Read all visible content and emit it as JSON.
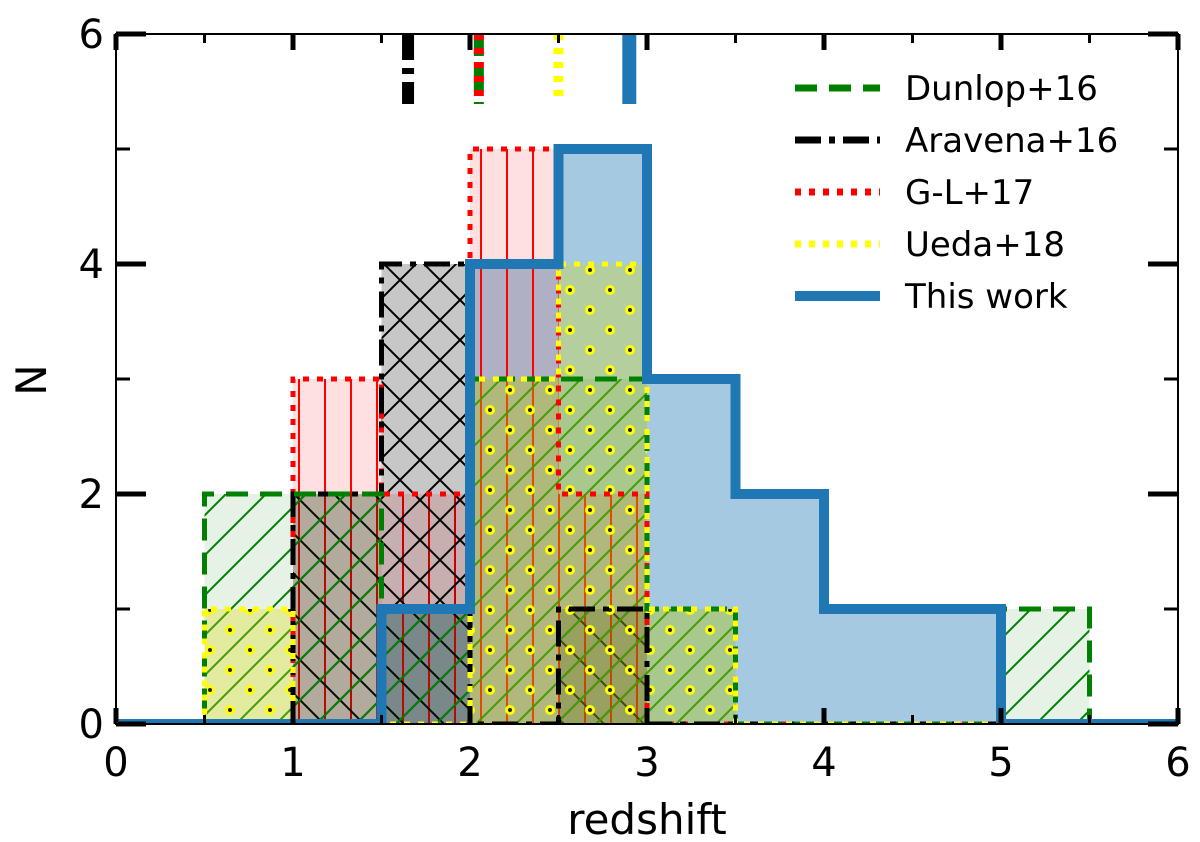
{
  "chart_data": {
    "type": "histogram",
    "xlabel": "redshift",
    "ylabel": "N",
    "xlim": [
      0,
      6
    ],
    "ylim": [
      0,
      6
    ],
    "x_ticks": [
      0,
      1,
      2,
      3,
      4,
      5,
      6
    ],
    "y_ticks": [
      0,
      2,
      4,
      6
    ],
    "x_minor_ticks": [
      0.5,
      1.5,
      2.5,
      3.5,
      4.5,
      5.5
    ],
    "y_minor_ticks": [
      1,
      3,
      5
    ],
    "bin_edges": [
      0,
      0.5,
      1,
      1.5,
      2,
      2.5,
      3,
      3.5,
      4,
      4.5,
      5,
      5.5,
      6
    ],
    "grid": false,
    "legend_position": "top-right",
    "series": [
      {
        "name": "Dunlop+16",
        "color": "#008000",
        "line_style": "dashed",
        "hatch": "diagonal",
        "counts": [
          0,
          2,
          2,
          1,
          3,
          3,
          1,
          0,
          0,
          0,
          1,
          0
        ],
        "median_z": 2.05
      },
      {
        "name": "Aravena+16",
        "color": "#000000",
        "line_style": "dash-dot",
        "hatch": "crosshatch",
        "counts": [
          0,
          0,
          2,
          4,
          0,
          1,
          0,
          0,
          0,
          0,
          0,
          0
        ],
        "median_z": 1.65
      },
      {
        "name": "G-L+17",
        "color": "#ff0000",
        "line_style": "dotted",
        "hatch": "vertical",
        "counts": [
          0,
          0,
          3,
          2,
          5,
          2,
          0,
          0,
          0,
          0,
          0,
          0
        ],
        "median_z": 2.05
      },
      {
        "name": "Ueda+18",
        "color": "#ffff00",
        "line_style": "dotted",
        "hatch": "dots",
        "counts": [
          0,
          1,
          0,
          0,
          3,
          4,
          1,
          0,
          0,
          0,
          0,
          0
        ],
        "median_z": 2.5
      },
      {
        "name": "This work",
        "color": "#1f77b4",
        "line_style": "solid",
        "hatch": "none",
        "counts": [
          0,
          0,
          0,
          1,
          4,
          5,
          3,
          2,
          1,
          1,
          0,
          0
        ],
        "median_z": 2.9
      }
    ]
  }
}
